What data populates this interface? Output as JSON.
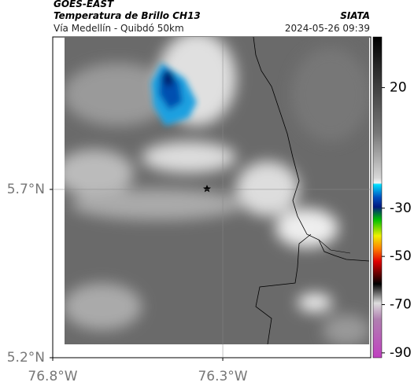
{
  "header": {
    "source": "GOES-EAST",
    "title": "Temperatura de Brillo CH13",
    "subtitle": "Vía Medellín - Quibdó 50km",
    "org": "SIATA",
    "datetime": "2024-05-26 09:39"
  },
  "map": {
    "xlim": [
      -76.8,
      -75.865
    ],
    "ylim": [
      5.2,
      6.153
    ],
    "xticks": [
      {
        "value": -76.8,
        "label": "76.8°W"
      },
      {
        "value": -76.3,
        "label": "76.3°W"
      }
    ],
    "yticks": [
      {
        "value": 5.2,
        "label": "5.2°N"
      },
      {
        "value": 5.7,
        "label": "5.7°N"
      }
    ],
    "grid": true
  },
  "colorbar": {
    "lim": [
      -92,
      41
    ],
    "ticks": [
      20,
      -30,
      -50,
      -70,
      -90
    ]
  }
}
